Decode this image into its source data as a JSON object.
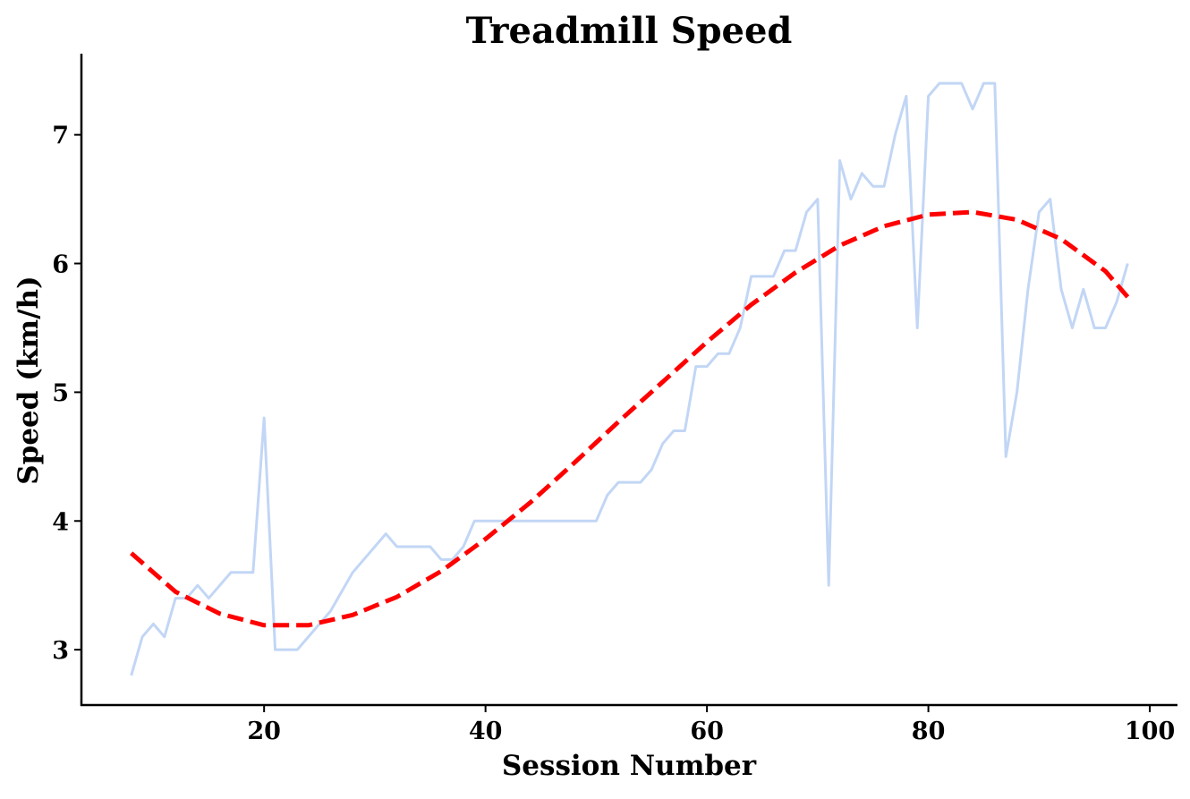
{
  "chart_data": {
    "type": "line",
    "title": "Treadmill Speed",
    "xlabel": "Session Number",
    "ylabel": "Speed (km/h)",
    "xlim": [
      3.5,
      102.5
    ],
    "ylim": [
      2.57,
      7.63
    ],
    "xticks": [
      20,
      40,
      60,
      80,
      100
    ],
    "yticks": [
      3,
      4,
      5,
      6,
      7
    ],
    "grid": false,
    "colors": {
      "data_line": "#c2d6f5",
      "trend_line": "#ff0000"
    },
    "series": [
      {
        "role": "data",
        "x": [
          8,
          9,
          10,
          11,
          12,
          13,
          14,
          15,
          16,
          17,
          18,
          19,
          20,
          21,
          22,
          23,
          24,
          25,
          26,
          27,
          28,
          29,
          30,
          31,
          32,
          33,
          34,
          35,
          36,
          37,
          38,
          39,
          40,
          41,
          42,
          43,
          44,
          45,
          46,
          47,
          48,
          49,
          50,
          51,
          52,
          53,
          54,
          55,
          56,
          57,
          58,
          59,
          60,
          61,
          62,
          63,
          64,
          65,
          66,
          67,
          68,
          69,
          70,
          71,
          72,
          73,
          74,
          75,
          76,
          77,
          78,
          79,
          80,
          81,
          82,
          83,
          84,
          85,
          86,
          87,
          88,
          89,
          90,
          91,
          92,
          93,
          94,
          95,
          96,
          97,
          98
        ],
        "values": [
          2.8,
          3.1,
          3.2,
          3.1,
          3.4,
          3.4,
          3.5,
          3.4,
          3.5,
          3.6,
          3.6,
          3.6,
          4.8,
          3.0,
          3.0,
          3.0,
          3.1,
          3.2,
          3.3,
          3.45,
          3.6,
          3.7,
          3.8,
          3.9,
          3.8,
          3.8,
          3.8,
          3.8,
          3.7,
          3.7,
          3.8,
          4.0,
          4.0,
          4.0,
          4.0,
          4.0,
          4.0,
          4.0,
          4.0,
          4.0,
          4.0,
          4.0,
          4.0,
          4.2,
          4.3,
          4.3,
          4.3,
          4.4,
          4.6,
          4.7,
          4.7,
          5.2,
          5.2,
          5.3,
          5.3,
          5.5,
          5.9,
          5.9,
          5.9,
          6.1,
          6.1,
          6.4,
          6.5,
          3.5,
          6.8,
          6.5,
          6.7,
          6.6,
          6.6,
          7.0,
          7.3,
          5.5,
          7.3,
          7.4,
          7.4,
          7.4,
          7.2,
          7.4,
          7.4,
          4.5,
          5.0,
          5.8,
          6.4,
          6.5,
          5.8,
          5.5,
          5.8,
          5.5,
          5.5,
          5.7,
          6.0
        ]
      },
      {
        "role": "trend",
        "x": [
          8,
          12,
          16,
          20,
          24,
          28,
          32,
          36,
          40,
          44,
          48,
          52,
          56,
          60,
          64,
          68,
          72,
          76,
          80,
          84,
          88,
          92,
          96,
          98
        ],
        "values": [
          3.75,
          3.45,
          3.28,
          3.19,
          3.19,
          3.27,
          3.41,
          3.61,
          3.86,
          4.14,
          4.45,
          4.77,
          5.08,
          5.39,
          5.68,
          5.93,
          6.14,
          6.29,
          6.38,
          6.4,
          6.34,
          6.19,
          5.94,
          5.74
        ]
      }
    ]
  }
}
